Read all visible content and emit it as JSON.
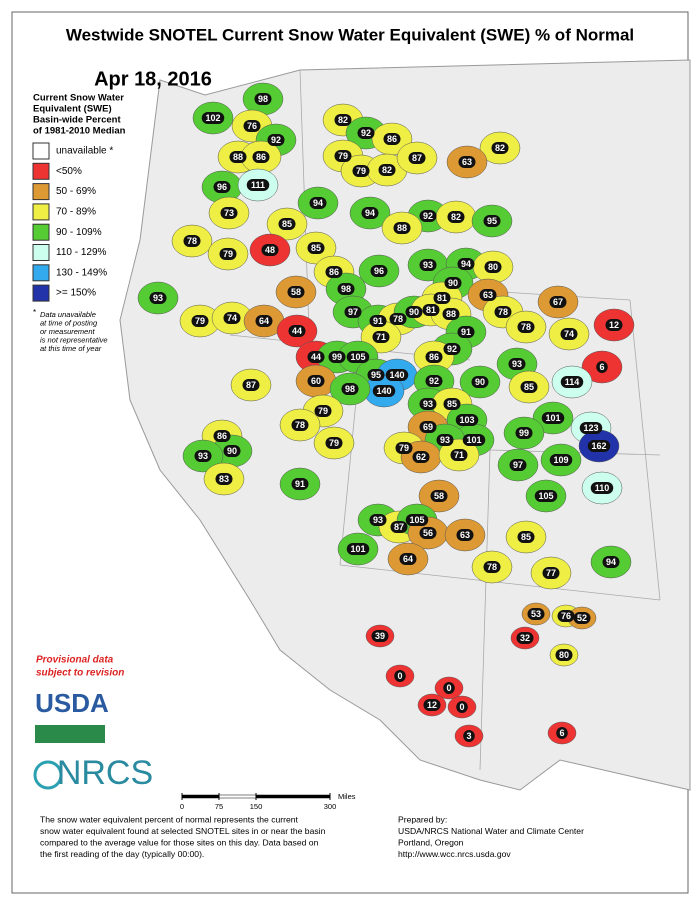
{
  "title": "Westwide SNOTEL Current Snow Water Equivalent (SWE) % of Normal",
  "date": "Apr 18, 2016",
  "legend": {
    "heading": [
      "Current Snow Water",
      "Equivalent (SWE)",
      "Basin-wide Percent",
      "of 1981-2010 Median"
    ],
    "items": [
      {
        "label": "unavailable *",
        "color": "#ffffff"
      },
      {
        "label": "<50%",
        "color": "#e33"
      },
      {
        "label": "50 - 69%",
        "color": "#d93"
      },
      {
        "label": "70 - 89%",
        "color": "#ee4"
      },
      {
        "label": "90 - 109%",
        "color": "#5c3"
      },
      {
        "label": "110 - 129%",
        "color": "#cfe"
      },
      {
        "label": "130 - 149%",
        "color": "#3ae"
      },
      {
        "label": ">= 150%",
        "color": "#23a"
      }
    ],
    "note_mark": "*",
    "note": [
      "Data unavailable",
      "at time of posting",
      "or measurement",
      "is not representative",
      "at this time of year"
    ]
  },
  "provisional": [
    "Provisional data",
    "subject to revision"
  ],
  "logos": {
    "usda": "USDA",
    "nrcs": "NRCS"
  },
  "scale": {
    "unit": "Miles",
    "ticks": [
      0,
      75,
      150,
      300
    ]
  },
  "footer": {
    "left": [
      "The snow water equivalent percent of normal represents the current",
      "snow water equivalent found at selected SNOTEL sites in or near the basin",
      "compared to the average value for those sites on this day. Data based on",
      "the first reading of the day (typically 00:00)."
    ],
    "right": [
      "Prepared by:",
      "USDA/NRCS National Water and Climate Center",
      "Portland, Oregon",
      "http://www.wcc.nrcs.usda.gov"
    ]
  },
  "basins": [
    {
      "value": 102,
      "color": "#5c3"
    },
    {
      "value": 98,
      "color": "#5c3"
    },
    {
      "value": 76,
      "color": "#ee4"
    },
    {
      "value": 92,
      "color": "#5c3"
    },
    {
      "value": 82,
      "color": "#ee4"
    },
    {
      "value": 92,
      "color": "#5c3"
    },
    {
      "value": 86,
      "color": "#ee4"
    },
    {
      "value": 82,
      "color": "#ee4"
    },
    {
      "value": 88,
      "color": "#ee4"
    },
    {
      "value": 86,
      "color": "#ee4"
    },
    {
      "value": 79,
      "color": "#ee4"
    },
    {
      "value": 79,
      "color": "#ee4"
    },
    {
      "value": 82,
      "color": "#ee4"
    },
    {
      "value": 87,
      "color": "#ee4"
    },
    {
      "value": 63,
      "color": "#d93"
    },
    {
      "value": 96,
      "color": "#5c3"
    },
    {
      "value": 111,
      "color": "#cfe"
    },
    {
      "value": 94,
      "color": "#5c3"
    },
    {
      "value": 94,
      "color": "#5c3"
    },
    {
      "value": 92,
      "color": "#5c3"
    },
    {
      "value": 82,
      "color": "#ee4"
    },
    {
      "value": 95,
      "color": "#5c3"
    },
    {
      "value": 73,
      "color": "#ee4"
    },
    {
      "value": 85,
      "color": "#ee4"
    },
    {
      "value": 78,
      "color": "#ee4"
    },
    {
      "value": 48,
      "color": "#e33"
    },
    {
      "value": 85,
      "color": "#ee4"
    },
    {
      "value": 79,
      "color": "#ee4"
    },
    {
      "value": 88,
      "color": "#ee4"
    },
    {
      "value": 93,
      "color": "#5c3"
    },
    {
      "value": 94,
      "color": "#5c3"
    },
    {
      "value": 80,
      "color": "#ee4"
    },
    {
      "value": 96,
      "color": "#5c3"
    },
    {
      "value": 86,
      "color": "#ee4"
    },
    {
      "value": 98,
      "color": "#5c3"
    },
    {
      "value": 90,
      "color": "#5c3"
    },
    {
      "value": 81,
      "color": "#ee4"
    },
    {
      "value": 63,
      "color": "#d93"
    },
    {
      "value": 67,
      "color": "#d93"
    },
    {
      "value": 12,
      "color": "#e33"
    },
    {
      "value": 93,
      "color": "#5c3"
    },
    {
      "value": 79,
      "color": "#ee4"
    },
    {
      "value": 74,
      "color": "#ee4"
    },
    {
      "value": 58,
      "color": "#d93"
    },
    {
      "value": 97,
      "color": "#5c3"
    },
    {
      "value": 91,
      "color": "#5c3"
    },
    {
      "value": 78,
      "color": "#ee4"
    },
    {
      "value": 90,
      "color": "#5c3"
    },
    {
      "value": 81,
      "color": "#ee4"
    },
    {
      "value": 88,
      "color": "#ee4"
    },
    {
      "value": 78,
      "color": "#ee4"
    },
    {
      "value": 78,
      "color": "#ee4"
    },
    {
      "value": 74,
      "color": "#ee4"
    },
    {
      "value": 64,
      "color": "#d93"
    },
    {
      "value": 44,
      "color": "#e33"
    },
    {
      "value": 71,
      "color": "#ee4"
    },
    {
      "value": 91,
      "color": "#5c3"
    },
    {
      "value": 92,
      "color": "#5c3"
    },
    {
      "value": 86,
      "color": "#ee4"
    },
    {
      "value": 6,
      "color": "#e33"
    },
    {
      "value": 44,
      "color": "#e33"
    },
    {
      "value": 99,
      "color": "#5c3"
    },
    {
      "value": 105,
      "color": "#5c3"
    },
    {
      "value": 93,
      "color": "#5c3"
    },
    {
      "value": 85,
      "color": "#ee4"
    },
    {
      "value": 114,
      "color": "#cfe"
    },
    {
      "value": 95,
      "color": "#5c3"
    },
    {
      "value": 140,
      "color": "#3ae"
    },
    {
      "value": 140,
      "color": "#3ae"
    },
    {
      "value": 87,
      "color": "#ee4"
    },
    {
      "value": 60,
      "color": "#d93"
    },
    {
      "value": 98,
      "color": "#5c3"
    },
    {
      "value": 92,
      "color": "#5c3"
    },
    {
      "value": 90,
      "color": "#5c3"
    },
    {
      "value": 79,
      "color": "#ee4"
    },
    {
      "value": 78,
      "color": "#ee4"
    },
    {
      "value": 93,
      "color": "#5c3"
    },
    {
      "value": 85,
      "color": "#ee4"
    },
    {
      "value": 103,
      "color": "#5c3"
    },
    {
      "value": 101,
      "color": "#5c3"
    },
    {
      "value": 123,
      "color": "#cfe"
    },
    {
      "value": 162,
      "color": "#23a"
    },
    {
      "value": 69,
      "color": "#d93"
    },
    {
      "value": 99,
      "color": "#5c3"
    },
    {
      "value": 86,
      "color": "#ee4"
    },
    {
      "value": 90,
      "color": "#5c3"
    },
    {
      "value": 93,
      "color": "#5c3"
    },
    {
      "value": 79,
      "color": "#ee4"
    },
    {
      "value": 101,
      "color": "#5c3"
    },
    {
      "value": 93,
      "color": "#5c3"
    },
    {
      "value": 79,
      "color": "#ee4"
    },
    {
      "value": 62,
      "color": "#d93"
    },
    {
      "value": 71,
      "color": "#ee4"
    },
    {
      "value": 97,
      "color": "#5c3"
    },
    {
      "value": 109,
      "color": "#5c3"
    },
    {
      "value": 83,
      "color": "#ee4"
    },
    {
      "value": 91,
      "color": "#5c3"
    },
    {
      "value": 58,
      "color": "#d93"
    },
    {
      "value": 105,
      "color": "#5c3"
    },
    {
      "value": 110,
      "color": "#cfe"
    },
    {
      "value": 93,
      "color": "#5c3"
    },
    {
      "value": 87,
      "color": "#ee4"
    },
    {
      "value": 105,
      "color": "#5c3"
    },
    {
      "value": 56,
      "color": "#d93"
    },
    {
      "value": 63,
      "color": "#d93"
    },
    {
      "value": 85,
      "color": "#ee4"
    },
    {
      "value": 101,
      "color": "#5c3"
    },
    {
      "value": 64,
      "color": "#d93"
    },
    {
      "value": 78,
      "color": "#ee4"
    },
    {
      "value": 77,
      "color": "#ee4"
    },
    {
      "value": 94,
      "color": "#5c3"
    },
    {
      "value": 53,
      "color": "#d93"
    },
    {
      "value": 76,
      "color": "#ee4"
    },
    {
      "value": 52,
      "color": "#d93"
    },
    {
      "value": 32,
      "color": "#e33"
    },
    {
      "value": 39,
      "color": "#e33"
    },
    {
      "value": 80,
      "color": "#ee4"
    },
    {
      "value": 0,
      "color": "#e33"
    },
    {
      "value": 0,
      "color": "#e33"
    },
    {
      "value": 12,
      "color": "#e33"
    },
    {
      "value": 0,
      "color": "#e33"
    },
    {
      "value": 3,
      "color": "#e33"
    },
    {
      "value": 6,
      "color": "#e33"
    }
  ]
}
